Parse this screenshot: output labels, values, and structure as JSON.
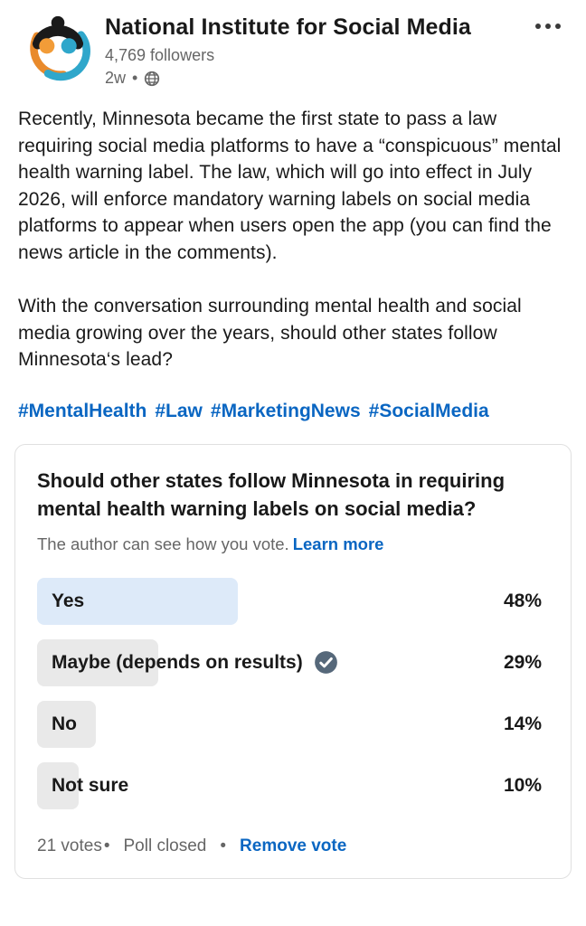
{
  "header": {
    "org_name": "National Institute for Social Media",
    "followers": "4,769 followers",
    "time": "2w",
    "time_separator": "•"
  },
  "post": {
    "paragraph1": "Recently, Minnesota became the first state to pass a law requiring social media platforms to have a “conspicuous” mental health warning label. The law, which will go into effect in July 2026, will enforce mandatory warning labels on social media platforms to appear when users open the app (you can find the news article in the comments).",
    "paragraph2": "With the conversation surrounding mental health and social media growing over the years, should other states follow Minnesota‘s lead?",
    "hashtags": [
      "#MentalHealth",
      "#Law",
      "#MarketingNews",
      "#SocialMedia"
    ]
  },
  "poll": {
    "question": "Should other states follow Minnesota in requiring mental health warning labels on social media?",
    "disclaimer": "The author can see how you vote.",
    "learn_more_label": "Learn more",
    "options": [
      {
        "label": "Yes",
        "percent_label": "48%",
        "value": 48
      },
      {
        "label": "Maybe (depends on results)",
        "percent_label": "29%",
        "value": 29
      },
      {
        "label": "No",
        "percent_label": "14%",
        "value": 14
      },
      {
        "label": "Not sure",
        "percent_label": "10%",
        "value": 10
      }
    ],
    "votes_label": "21 votes",
    "separator": "•",
    "status_label": "Poll closed",
    "remove_vote_label": "Remove vote"
  },
  "chart_data": {
    "type": "bar",
    "title": "Should other states follow Minnesota in requiring mental health warning labels on social media?",
    "categories": [
      "Yes",
      "Maybe (depends on results)",
      "No",
      "Not sure"
    ],
    "values": [
      48,
      29,
      14,
      10
    ],
    "unit": "%",
    "total_votes": 21,
    "selected_option": "Maybe (depends on results)",
    "status": "Poll closed"
  },
  "colors": {
    "accent_blue": "#0a66c2",
    "highlight_bar": "#ddeaf9",
    "gray_bar": "#e9e9e9",
    "check_badge": "#56687a",
    "muted_text": "#666666",
    "logo_orange": "#ef9а3c",
    "logo_teal": "#2fa7cb"
  }
}
